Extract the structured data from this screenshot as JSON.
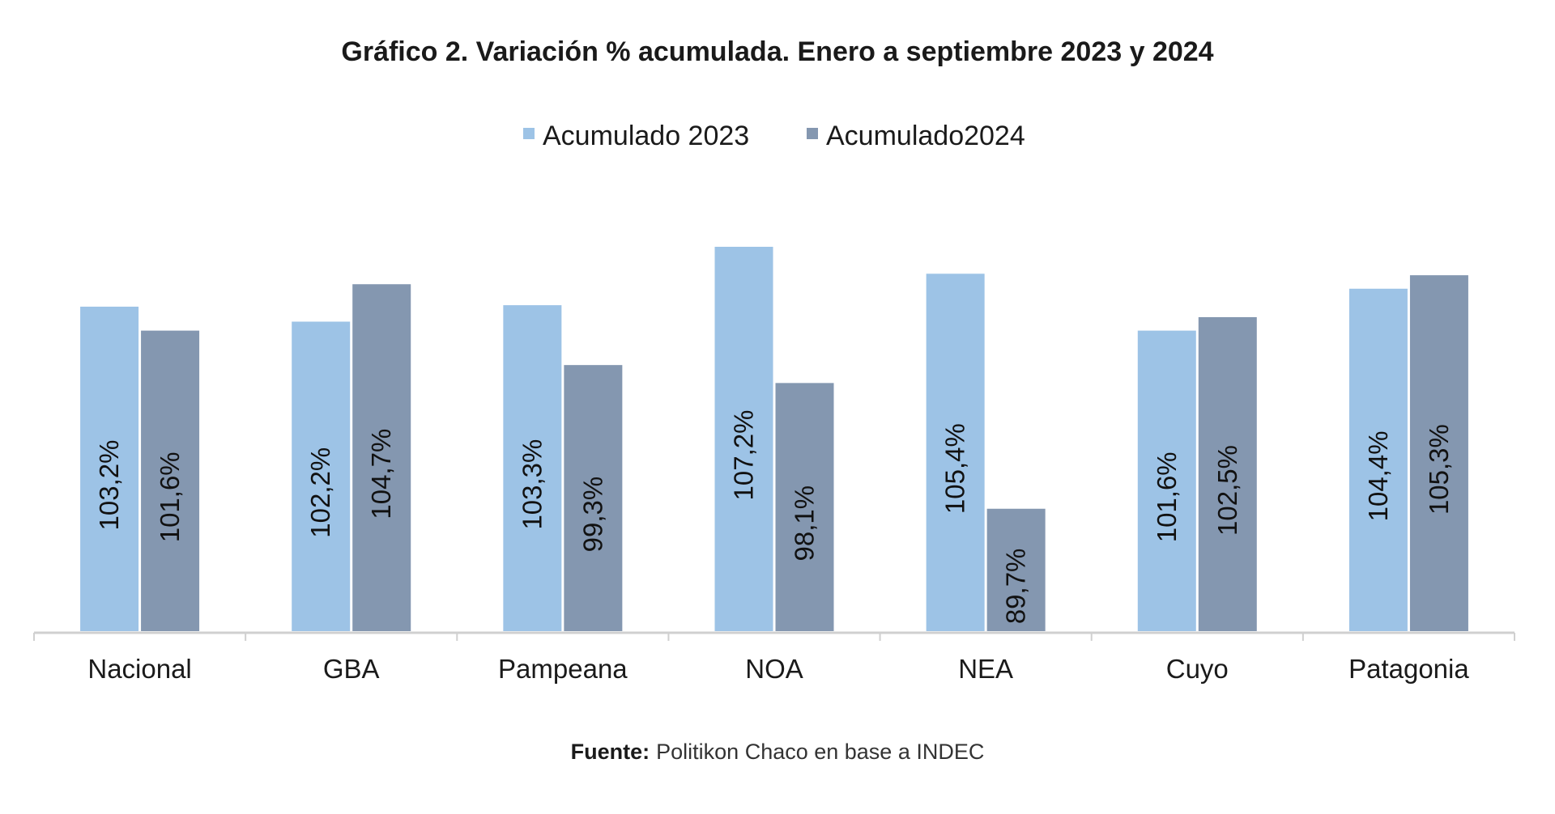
{
  "colors": {
    "series_2023": "#9dc3e6",
    "series_2024": "#8497b0",
    "axis": "#d0d0d0",
    "text": "#1a1a1a"
  },
  "source": {
    "label": "Fuente:",
    "text": "Politikon Chaco en base a INDEC"
  },
  "chart_data": {
    "type": "bar",
    "title": "Gráfico 2. Variación % acumulada. Enero a septiembre 2023 y 2024",
    "categories": [
      "Nacional",
      "GBA",
      "Pampeana",
      "NOA",
      "NEA",
      "Cuyo",
      "Patagonia"
    ],
    "series": [
      {
        "name": "Acumulado 2023",
        "values": [
          103.2,
          102.2,
          103.3,
          107.2,
          105.4,
          101.6,
          104.4
        ],
        "labels": [
          "103,2%",
          "102,2%",
          "103,3%",
          "107,2%",
          "105,4%",
          "101,6%",
          "104,4%"
        ]
      },
      {
        "name": "Acumulado2024",
        "values": [
          101.6,
          104.7,
          99.3,
          98.1,
          89.7,
          102.5,
          105.3
        ],
        "labels": [
          "101,6%",
          "104,7%",
          "99,3%",
          "98,1%",
          "89,7%",
          "102,5%",
          "105,3%"
        ]
      }
    ],
    "ylim": [
      80,
      110
    ],
    "grid": false,
    "legend_position": "top-center"
  }
}
